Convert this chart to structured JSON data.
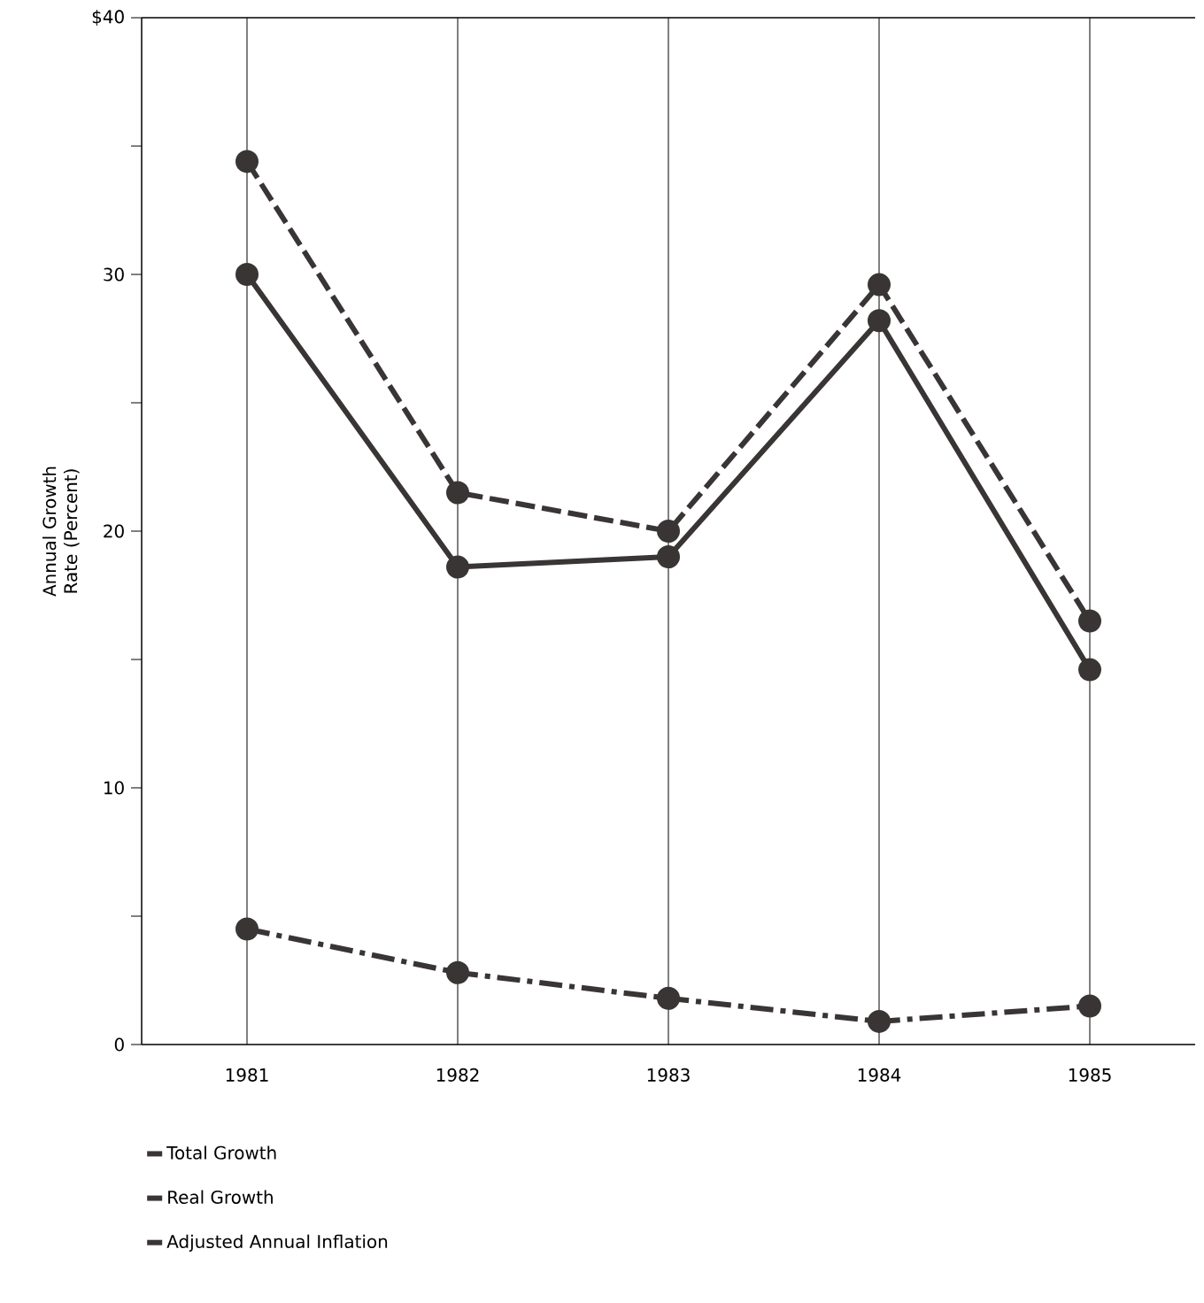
{
  "chart_data": {
    "type": "line",
    "ylabel": "Annual Growth Rate (Percent)",
    "categories": [
      "1981",
      "1982",
      "1983",
      "1984",
      "1985"
    ],
    "ylim": [
      0,
      40
    ],
    "yticks": [
      0,
      {
        "value": 5,
        "label": null
      },
      10,
      {
        "value": 15,
        "label": null
      },
      20,
      {
        "value": 25,
        "label": null
      },
      30,
      {
        "value": 35,
        "label": null
      },
      {
        "value": 40,
        "label": "$40"
      }
    ],
    "grid": "x",
    "legend": "bottom",
    "marker": "circle",
    "series": [
      {
        "name": "Total Growth",
        "color": "#3a3535",
        "line_style": "dashed",
        "values": [
          34.4,
          21.5,
          20.0,
          29.6,
          16.5
        ]
      },
      {
        "name": "Real Growth",
        "color": "#3a3535",
        "line_style": "solid",
        "values": [
          30.0,
          18.6,
          19.0,
          28.2,
          14.6
        ]
      },
      {
        "name": "Adjusted Annual Inflation",
        "color": "#3a3535",
        "line_style": "dashdotted",
        "values": [
          4.5,
          2.8,
          1.8,
          0.9,
          1.5
        ]
      }
    ]
  }
}
